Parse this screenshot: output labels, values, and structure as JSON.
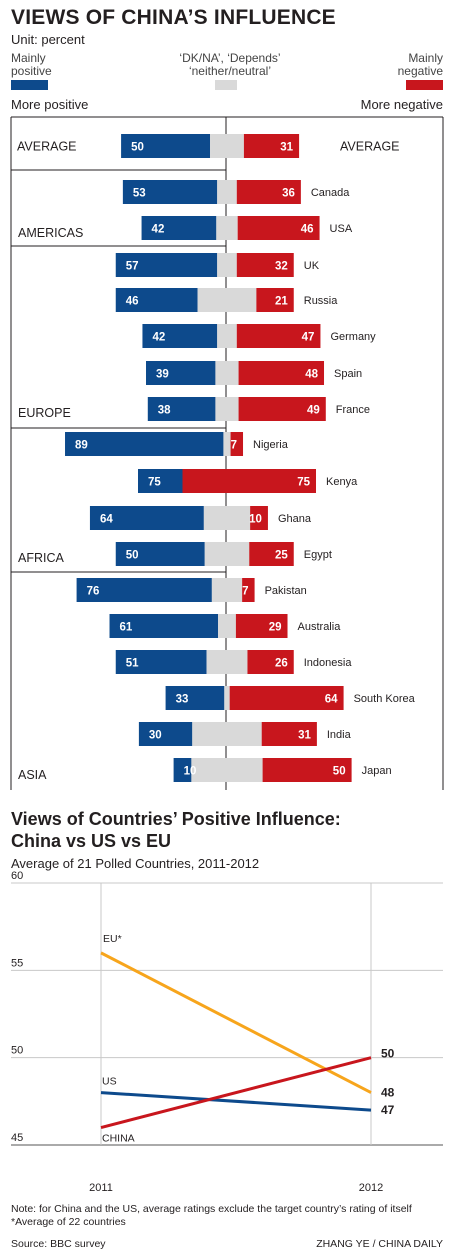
{
  "title": "VIEWS OF CHINA’S INFLUENCE",
  "unit": "Unit: percent",
  "legend": {
    "positive": "Mainly positive",
    "neutral_line1": "‘DK/NA’, ‘Depends’",
    "neutral_line2": "‘neither/neutral’",
    "negative": "Mainly negative"
  },
  "direction": {
    "left": "More positive",
    "right": "More negative"
  },
  "colors": {
    "positive": "#0d4a8c",
    "neutral": "#d9d9d9",
    "negative": "#c8161d",
    "eu": "#f7a51c",
    "us": "#0d4a8c",
    "china": "#c8161d"
  },
  "chart_data": [
    {
      "type": "bar",
      "title": "VIEWS OF CHINA’S INFLUENCE",
      "stacked": true,
      "categories": [
        "AVERAGE",
        "Canada",
        "USA",
        "UK",
        "Russia",
        "Germany",
        "Spain",
        "France",
        "Nigeria",
        "Kenya",
        "Ghana",
        "Egypt",
        "Pakistan",
        "Australia",
        "Indonesia",
        "South Korea",
        "India",
        "Japan"
      ],
      "regions": [
        {
          "name": "AMERICAS",
          "countries": [
            "Canada",
            "USA"
          ]
        },
        {
          "name": "EUROPE",
          "countries": [
            "UK",
            "Russia",
            "Germany",
            "Spain",
            "France"
          ]
        },
        {
          "name": "AFRICA",
          "countries": [
            "Nigeria",
            "Kenya",
            "Ghana",
            "Egypt"
          ]
        },
        {
          "name": "ASIA",
          "countries": [
            "Pakistan",
            "Australia",
            "Indonesia",
            "South Korea",
            "India",
            "Japan"
          ]
        }
      ],
      "series": [
        {
          "name": "Mainly positive",
          "values": [
            50,
            53,
            42,
            57,
            46,
            42,
            39,
            38,
            89,
            75,
            64,
            50,
            76,
            61,
            51,
            33,
            30,
            10
          ]
        },
        {
          "name": "Mainly negative",
          "values": [
            31,
            36,
            46,
            32,
            21,
            47,
            48,
            49,
            7,
            75,
            10,
            25,
            7,
            29,
            26,
            64,
            31,
            50
          ]
        }
      ]
    },
    {
      "type": "line",
      "title": "Views of Countries’ Positive Influence: China vs US vs EU",
      "subtitle": "Average of 21 Polled Countries, 2011-2012",
      "x": [
        "2011",
        "2012"
      ],
      "ylim": [
        45,
        60
      ],
      "yticks": [
        45,
        50,
        55,
        60
      ],
      "grid": true,
      "series": [
        {
          "name": "EU*",
          "values": [
            56,
            48
          ]
        },
        {
          "name": "US",
          "values": [
            48,
            47
          ]
        },
        {
          "name": "CHINA",
          "values": [
            46,
            50
          ]
        }
      ],
      "end_labels": [
        "48",
        "47",
        "50"
      ]
    }
  ],
  "note": "Note: for China and the US, average ratings exclude the target country’s rating of itself",
  "footnote": "*Average of 22 countries",
  "source": "Source: BBC survey",
  "credit": "ZHANG YE / CHINA DAILY"
}
